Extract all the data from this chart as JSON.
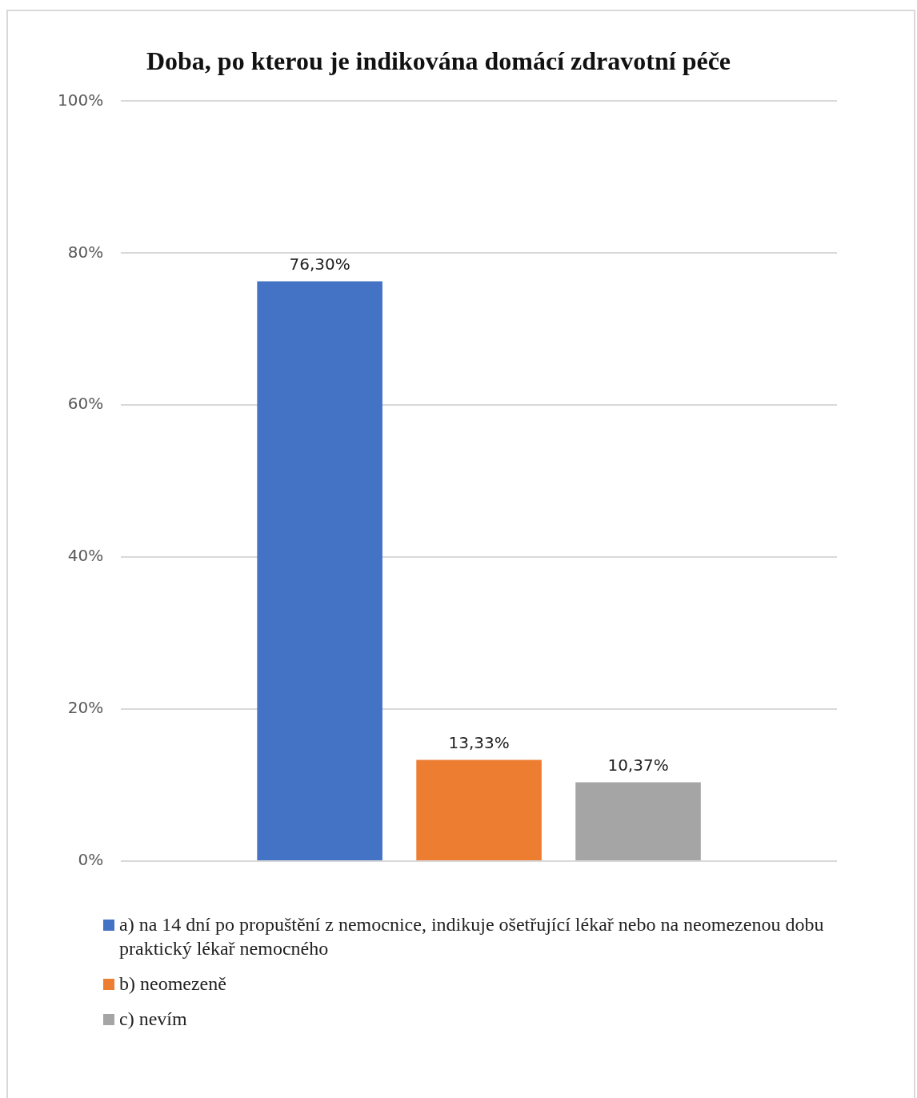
{
  "chart_data": {
    "type": "bar",
    "title": "Doba, po kterou je indikována domácí zdravotní péče",
    "categories": [
      null
    ],
    "series": [
      {
        "name": "a) na 14 dní po propuštění z nemocnice, indikuje ošetřující lékař nebo na neomezenou dobu praktický lékař nemocného",
        "color": "#4472c4",
        "values": [
          76.3
        ],
        "value_labels": [
          "76,30%"
        ]
      },
      {
        "name": "b) neomezeně",
        "color": "#ed7d31",
        "values": [
          13.33
        ],
        "value_labels": [
          "13,33%"
        ]
      },
      {
        "name": "c) nevím",
        "color": "#a5a5a5",
        "values": [
          10.37
        ],
        "value_labels": [
          "10,37%"
        ]
      }
    ],
    "ylim": [
      0,
      100
    ],
    "yticks": [
      {
        "value": 0,
        "label": "0%"
      },
      {
        "value": 20,
        "label": "20%"
      },
      {
        "value": 40,
        "label": "40%"
      },
      {
        "value": 60,
        "label": "60%"
      },
      {
        "value": 80,
        "label": "80%"
      },
      {
        "value": 100,
        "label": "100%"
      }
    ],
    "grid": "y",
    "legend": "bottom"
  }
}
